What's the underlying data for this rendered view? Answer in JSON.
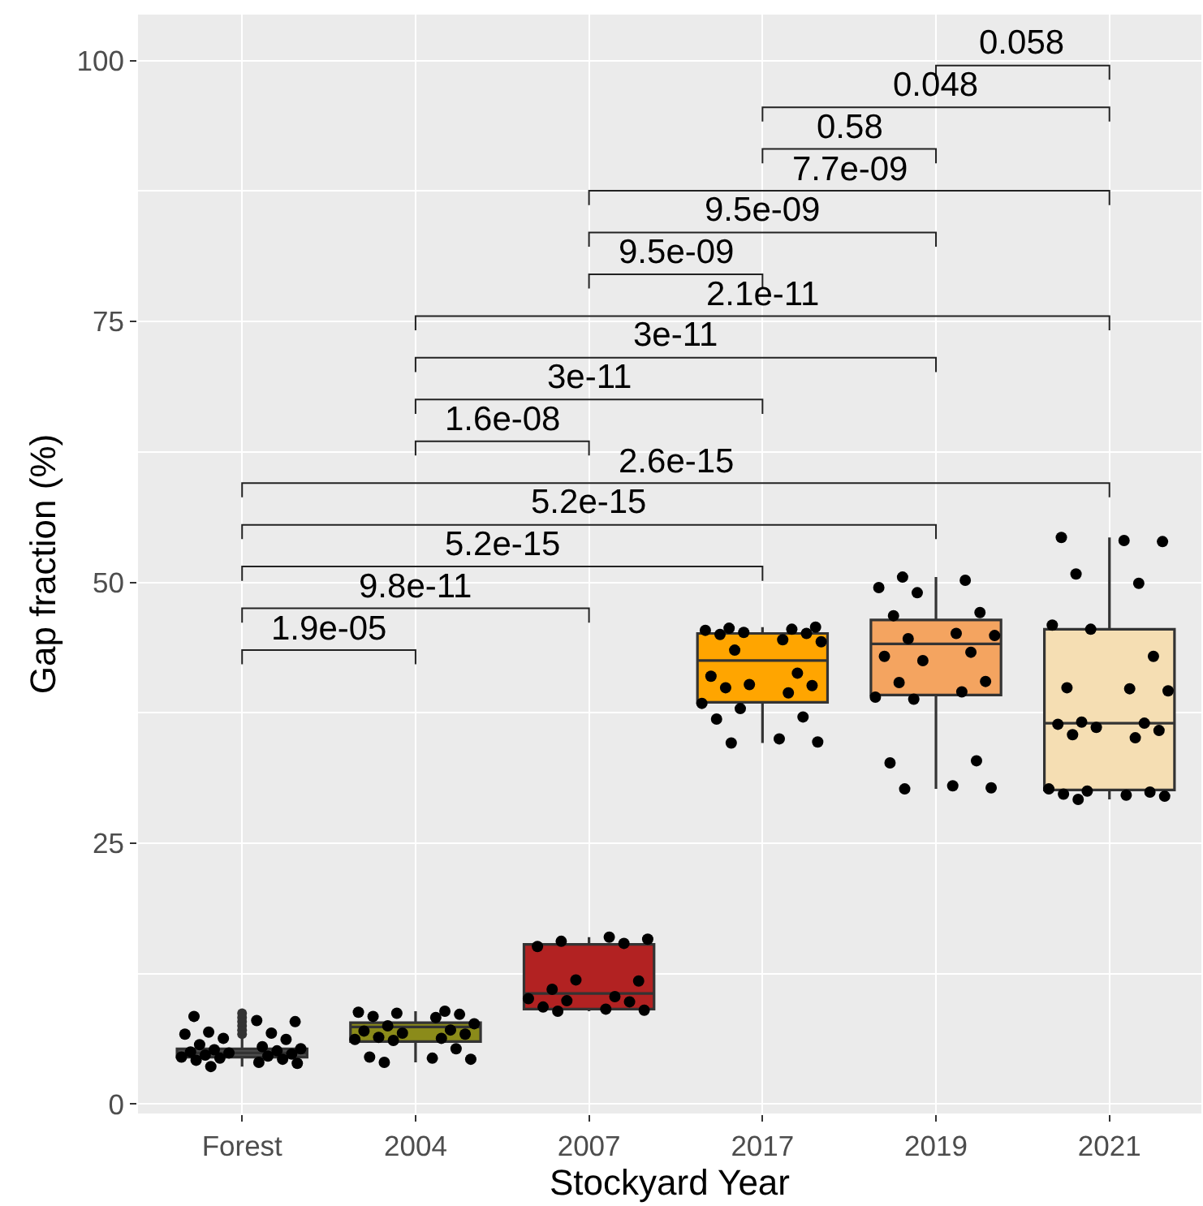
{
  "chart_data": {
    "type": "box",
    "xlabel": "Stockyard Year",
    "ylabel": "Gap fraction (%)",
    "categories": [
      "Forest",
      "2004",
      "2007",
      "2017",
      "2019",
      "2021"
    ],
    "ylim": [
      -0.9,
      104.4
    ],
    "yticks": [
      0,
      25,
      50,
      75,
      100
    ],
    "grid": true,
    "marker": "circle",
    "series": [
      {
        "colors": [
          "#4d4d4d",
          "#8b8b1a",
          "#b22222",
          "#ffa500",
          "#f4a460",
          "#f5deb3"
        ],
        "boxes": [
          {
            "low": 3.6,
            "q1": 4.5,
            "median": 4.9,
            "q3": 5.3,
            "high": 6.3,
            "outliers": [
              6.7,
              7.1,
              7.5,
              7.9,
              8.3,
              8.7
            ]
          },
          {
            "low": 4.0,
            "q1": 6.0,
            "median": 7.4,
            "q3": 7.8,
            "high": 8.9
          },
          {
            "low": 8.9,
            "q1": 9.1,
            "median": 10.6,
            "q3": 15.3,
            "high": 16.0
          },
          {
            "low": 34.6,
            "q1": 38.5,
            "median": 42.5,
            "q3": 45.1,
            "high": 45.7
          },
          {
            "low": 30.2,
            "q1": 39.2,
            "median": 44.1,
            "q3": 46.4,
            "high": 50.5
          },
          {
            "low": 29.2,
            "q1": 30.1,
            "median": 36.5,
            "q3": 45.5,
            "high": 54.3
          }
        ]
      },
      {
        "type": "scatter",
        "color": "#000000",
        "values": [
          3.6,
          4.0,
          8.9,
          34.6,
          30.2,
          29.2
        ]
      },
      {
        "type": "scatter",
        "color": "#000000",
        "values": [
          3.9,
          4.3,
          9.0,
          34.7,
          30.3,
          29.5
        ]
      },
      {
        "type": "scatter",
        "color": "#000000",
        "values": [
          4.0,
          4.4,
          9.1,
          35.0,
          30.5,
          29.6
        ]
      },
      {
        "type": "scatter",
        "color": "#000000",
        "values": [
          4.2,
          4.5,
          9.3,
          36.9,
          32.7,
          29.7
        ]
      },
      {
        "type": "scatter",
        "color": "#000000",
        "values": [
          4.3,
          5.3,
          9.8,
          37.1,
          32.9,
          29.9
        ]
      },
      {
        "type": "scatter",
        "color": "#000000",
        "values": [
          4.4,
          6.1,
          9.9,
          37.9,
          38.8,
          30.0
        ]
      },
      {
        "type": "scatter",
        "color": "#000000",
        "values": [
          4.5,
          6.2,
          10.1,
          38.4,
          39.0,
          30.2
        ]
      },
      {
        "type": "scatter",
        "color": "#000000",
        "values": [
          4.6,
          6.3,
          10.3,
          39.4,
          39.5,
          35.1
        ]
      },
      {
        "type": "scatter",
        "color": "#000000",
        "values": [
          4.7,
          6.4,
          11.0,
          39.9,
          40.4,
          35.4
        ]
      },
      {
        "type": "scatter",
        "color": "#000000",
        "values": [
          4.8,
          6.7,
          11.8,
          40.1,
          40.5,
          35.8
        ]
      },
      {
        "type": "scatter",
        "color": "#000000",
        "values": [
          4.9,
          6.8,
          11.9,
          40.2,
          42.5,
          36.1
        ]
      },
      {
        "type": "scatter",
        "color": "#000000",
        "values": [
          5.0,
          7.0,
          15.1,
          41.0,
          42.9,
          36.4
        ]
      },
      {
        "type": "scatter",
        "color": "#000000",
        "values": [
          5.1,
          7.1,
          15.4,
          41.3,
          43.3,
          36.5
        ]
      },
      {
        "type": "scatter",
        "color": "#000000",
        "values": [
          5.2,
          7.5,
          15.6,
          43.5,
          44.6,
          36.6
        ]
      },
      {
        "type": "scatter",
        "color": "#000000",
        "values": [
          5.3,
          7.7,
          15.8,
          44.3,
          44.9,
          39.6
        ]
      },
      {
        "type": "scatter",
        "color": "#000000",
        "values": [
          5.5,
          8.3,
          16.0,
          44.5,
          45.1,
          39.8
        ]
      },
      {
        "type": "scatter",
        "color": "#000000",
        "values": [
          5.7,
          8.4,
          null,
          45.0,
          46.8,
          39.9
        ]
      },
      {
        "type": "scatter",
        "color": "#000000",
        "values": [
          6.2,
          8.6,
          null,
          45.1,
          47.1,
          42.9
        ]
      },
      {
        "type": "scatter",
        "color": "#000000",
        "values": [
          6.3,
          8.7,
          null,
          45.2,
          49.0,
          45.5
        ]
      },
      {
        "type": "scatter",
        "color": "#000000",
        "values": [
          6.7,
          8.8,
          null,
          45.4,
          49.5,
          45.9
        ]
      },
      {
        "type": "scatter",
        "color": "#000000",
        "values": [
          6.8,
          8.9,
          null,
          45.5,
          50.2,
          49.9
        ]
      },
      {
        "type": "scatter",
        "color": "#000000",
        "values": [
          6.9,
          null,
          null,
          45.6,
          50.5,
          50.8
        ]
      },
      {
        "type": "scatter",
        "color": "#000000",
        "values": [
          7.9,
          null,
          null,
          45.7,
          null,
          53.9
        ]
      },
      {
        "type": "scatter",
        "color": "#000000",
        "values": [
          8.0,
          null,
          null,
          null,
          null,
          54.0
        ]
      },
      {
        "type": "scatter",
        "color": "#000000",
        "values": [
          8.4,
          null,
          null,
          null,
          null,
          54.3
        ]
      }
    ],
    "annotations": [
      "1.9e-05",
      "9.8e-11",
      "5.2e-15",
      "5.2e-15",
      "2.6e-15",
      "1.6e-08",
      "3e-11",
      "3e-11",
      "2.1e-11",
      "9.5e-09",
      "9.5e-09",
      "7.7e-09",
      "0.58",
      "0.048",
      "0.058"
    ]
  }
}
